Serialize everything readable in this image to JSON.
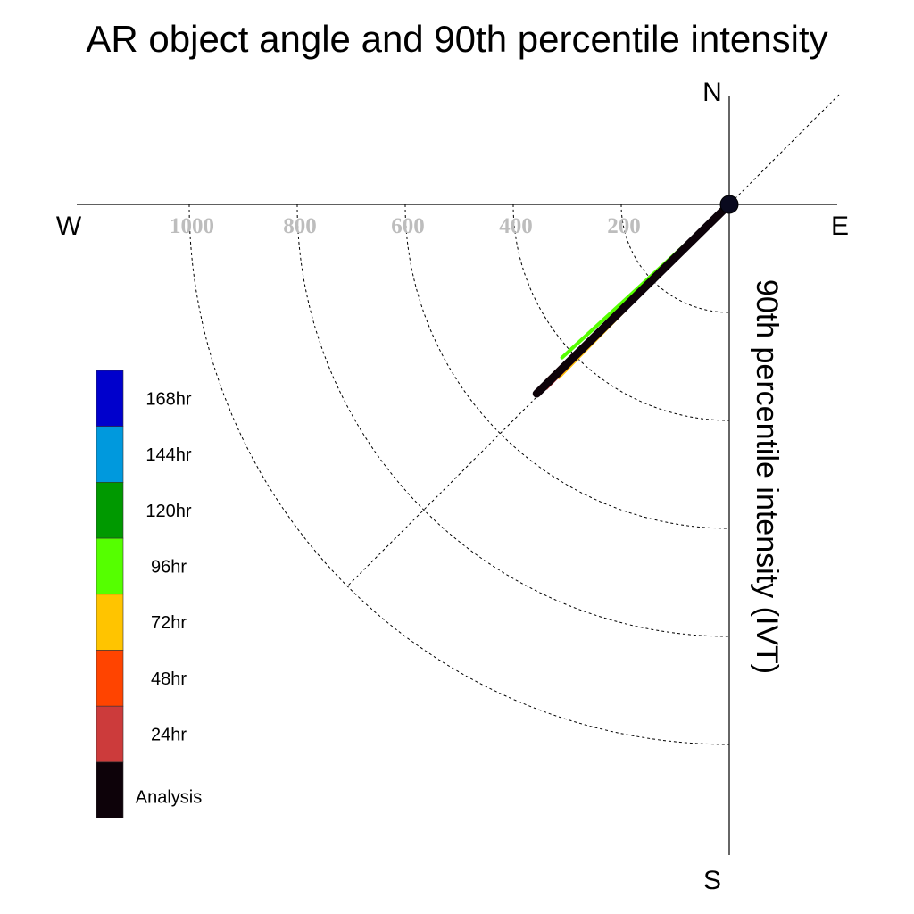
{
  "chart_data": {
    "type": "polar-vector",
    "title": "AR object angle and 90th percentile intensity",
    "ylabel": "90th percentile intensity (IVT)",
    "directions": {
      "north": "N",
      "east": "E",
      "south": "S",
      "west": "W"
    },
    "radial_ticks": [
      {
        "value": 200,
        "label": "200"
      },
      {
        "value": 400,
        "label": "400"
      },
      {
        "value": 600,
        "label": "600"
      },
      {
        "value": 800,
        "label": "800"
      },
      {
        "value": 1000,
        "label": "1000"
      }
    ],
    "rmax": 1000,
    "diagonal_reference": true,
    "grid": "dashed arcs",
    "legend_position": "left",
    "series": [
      {
        "name": "Analysis",
        "color": "#0d0209",
        "angle_deg": 225.5,
        "intensity": 500,
        "stroke": 9
      },
      {
        "name": "24hr",
        "color": "#cc3b3b",
        "angle_deg": 225.0,
        "intensity": 480,
        "stroke": 5
      },
      {
        "name": "48hr",
        "color": "#ff4400",
        "angle_deg": 226.0,
        "intensity": 468,
        "stroke": 4
      },
      {
        "name": "72hr",
        "color": "#ffc400",
        "angle_deg": 224.5,
        "intensity": 450,
        "stroke": 3
      },
      {
        "name": "96hr",
        "color": "#55ff00",
        "angle_deg": 227.5,
        "intensity": 420,
        "stroke": 4
      },
      {
        "name": "120hr",
        "color": "#009900",
        "angle_deg": 227.5,
        "intensity": 400,
        "stroke": 3
      },
      {
        "name": "144hr",
        "color": "#0099dd",
        "angle_deg": null,
        "intensity": null,
        "stroke": 3
      },
      {
        "name": "168hr",
        "color": "#0000cc",
        "angle_deg": null,
        "intensity": null,
        "stroke": 3
      }
    ],
    "legend_order": [
      "168hr",
      "144hr",
      "120hr",
      "96hr",
      "72hr",
      "48hr",
      "24hr",
      "Analysis"
    ]
  }
}
